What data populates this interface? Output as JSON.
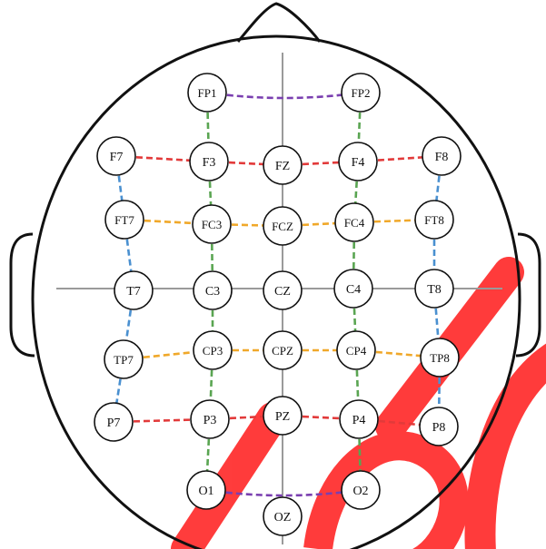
{
  "diagram": {
    "electrodes": [
      {
        "id": "FP1",
        "label": "FP1"
      },
      {
        "id": "FP2",
        "label": "FP2"
      },
      {
        "id": "F7",
        "label": "F7"
      },
      {
        "id": "F3",
        "label": "F3"
      },
      {
        "id": "FZ",
        "label": "FZ"
      },
      {
        "id": "F4",
        "label": "F4"
      },
      {
        "id": "F8",
        "label": "F8"
      },
      {
        "id": "FT7",
        "label": "FT7"
      },
      {
        "id": "FC3",
        "label": "FC3"
      },
      {
        "id": "FCZ",
        "label": "FCZ"
      },
      {
        "id": "FC4",
        "label": "FC4"
      },
      {
        "id": "FT8",
        "label": "FT8"
      },
      {
        "id": "T7",
        "label": "T7"
      },
      {
        "id": "C3",
        "label": "C3"
      },
      {
        "id": "CZ",
        "label": "CZ"
      },
      {
        "id": "C4",
        "label": "C4"
      },
      {
        "id": "T8",
        "label": "T8"
      },
      {
        "id": "TP7",
        "label": "TP7"
      },
      {
        "id": "CP3",
        "label": "CP3"
      },
      {
        "id": "CPZ",
        "label": "CPZ"
      },
      {
        "id": "CP4",
        "label": "CP4"
      },
      {
        "id": "TP8",
        "label": "TP8"
      },
      {
        "id": "P7",
        "label": "P7"
      },
      {
        "id": "P3",
        "label": "P3"
      },
      {
        "id": "PZ",
        "label": "PZ"
      },
      {
        "id": "P4",
        "label": "P4"
      },
      {
        "id": "P8",
        "label": "P8"
      },
      {
        "id": "O1",
        "label": "O1"
      },
      {
        "id": "O2",
        "label": "O2"
      },
      {
        "id": "OZ",
        "label": "OZ"
      }
    ],
    "connections": [
      {
        "from": "FP1",
        "to": "FP2",
        "color": "purple"
      },
      {
        "from": "O1",
        "to": "O2",
        "color": "purple"
      },
      {
        "from": "F7",
        "to": "F3",
        "color": "red"
      },
      {
        "from": "F3",
        "to": "FZ",
        "color": "red"
      },
      {
        "from": "FZ",
        "to": "F4",
        "color": "red"
      },
      {
        "from": "F4",
        "to": "F8",
        "color": "red"
      },
      {
        "from": "P7",
        "to": "P3",
        "color": "red"
      },
      {
        "from": "P3",
        "to": "PZ",
        "color": "red"
      },
      {
        "from": "PZ",
        "to": "P4",
        "color": "red"
      },
      {
        "from": "P4",
        "to": "P8",
        "color": "red"
      },
      {
        "from": "FT7",
        "to": "FC3",
        "color": "orange"
      },
      {
        "from": "FC3",
        "to": "FCZ",
        "color": "orange"
      },
      {
        "from": "FCZ",
        "to": "FC4",
        "color": "orange"
      },
      {
        "from": "FC4",
        "to": "FT8",
        "color": "orange"
      },
      {
        "from": "TP7",
        "to": "CP3",
        "color": "orange"
      },
      {
        "from": "CP3",
        "to": "CPZ",
        "color": "orange"
      },
      {
        "from": "CPZ",
        "to": "CP4",
        "color": "orange"
      },
      {
        "from": "CP4",
        "to": "TP8",
        "color": "orange"
      },
      {
        "from": "FP1",
        "to": "F3",
        "color": "green"
      },
      {
        "from": "F3",
        "to": "FC3",
        "color": "green"
      },
      {
        "from": "FC3",
        "to": "C3",
        "color": "green"
      },
      {
        "from": "C3",
        "to": "CP3",
        "color": "green"
      },
      {
        "from": "CP3",
        "to": "P3",
        "color": "green"
      },
      {
        "from": "P3",
        "to": "O1",
        "color": "green"
      },
      {
        "from": "FP2",
        "to": "F4",
        "color": "green"
      },
      {
        "from": "F4",
        "to": "FC4",
        "color": "green"
      },
      {
        "from": "FC4",
        "to": "C4",
        "color": "green"
      },
      {
        "from": "C4",
        "to": "CP4",
        "color": "green"
      },
      {
        "from": "CP4",
        "to": "P4",
        "color": "green"
      },
      {
        "from": "P4",
        "to": "O2",
        "color": "green"
      },
      {
        "from": "F7",
        "to": "FT7",
        "color": "blue"
      },
      {
        "from": "FT7",
        "to": "T7",
        "color": "blue"
      },
      {
        "from": "T7",
        "to": "TP7",
        "color": "blue"
      },
      {
        "from": "TP7",
        "to": "P7",
        "color": "blue"
      },
      {
        "from": "F8",
        "to": "FT8",
        "color": "blue"
      },
      {
        "from": "FT8",
        "to": "T8",
        "color": "blue"
      },
      {
        "from": "T8",
        "to": "TP8",
        "color": "blue"
      },
      {
        "from": "TP8",
        "to": "P8",
        "color": "blue"
      }
    ],
    "colors": {
      "purple": "#7a3fb0",
      "red": "#e23a3a",
      "orange": "#f0a82a",
      "green": "#5aa552",
      "blue": "#4a90d0",
      "outline": "#111111",
      "axis": "#9a9a9a",
      "watermark": "#ff1a1a"
    }
  }
}
